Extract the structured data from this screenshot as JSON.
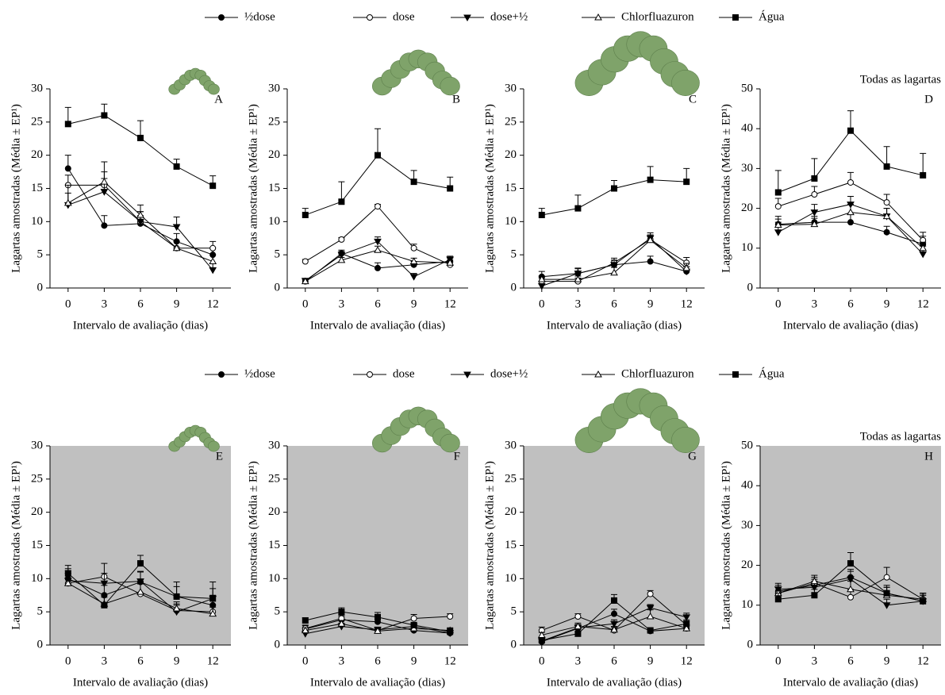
{
  "chart_data": [
    {
      "type": "line",
      "label": "A",
      "xlabel": "Intervalo de avaliação (dias)",
      "ylabel": "Lagartas amostradas (Média ± EP¹)",
      "x": [
        0,
        3,
        6,
        9,
        12
      ],
      "xlim": [
        -1.5,
        13.5
      ],
      "xticks": [
        0,
        3,
        6,
        9,
        12
      ],
      "ylim": [
        0,
        30
      ],
      "yticks": [
        0,
        5,
        10,
        15,
        20,
        25,
        30
      ],
      "background": "#ffffff",
      "series": [
        {
          "name": "½dose",
          "marker": "circle",
          "fill": "#000000",
          "color": "#000000",
          "values": [
            18,
            9.4,
            9.7,
            7,
            5
          ],
          "errors": [
            2,
            1.5,
            1.2,
            1.2,
            1
          ]
        },
        {
          "name": "dose",
          "marker": "circle",
          "fill": "#ffffff",
          "color": "#000000",
          "values": [
            15.5,
            15.5,
            10,
            6,
            6
          ],
          "errors": [
            1.5,
            2,
            1.5,
            1,
            1
          ]
        },
        {
          "name": "dose+½",
          "marker": "triangle-down",
          "fill": "#000000",
          "color": "#000000",
          "values": [
            12.5,
            14.5,
            10,
            9.2,
            2.7
          ],
          "errors": [
            3,
            2,
            1.5,
            1.5,
            1
          ]
        },
        {
          "name": "Chlorfluazuron",
          "marker": "triangle-up",
          "fill": "#ffffff",
          "color": "#000000",
          "values": [
            12.8,
            16,
            11,
            6,
            4
          ],
          "errors": [
            1.5,
            3,
            1.5,
            1,
            1
          ]
        },
        {
          "name": "Água",
          "marker": "square",
          "fill": "#000000",
          "color": "#000000",
          "values": [
            24.7,
            26,
            22.6,
            18.3,
            15.4
          ],
          "errors": [
            2.5,
            1.7,
            2.6,
            1.1,
            1.5
          ]
        }
      ]
    },
    {
      "type": "line",
      "label": "B",
      "xlabel": "Intervalo de avaliação (dias)",
      "ylabel": "Lagartas amostradas (Média ± EP¹)",
      "x": [
        0,
        3,
        6,
        9,
        12
      ],
      "xlim": [
        -1.5,
        13.5
      ],
      "xticks": [
        0,
        3,
        6,
        9,
        12
      ],
      "ylim": [
        0,
        30
      ],
      "yticks": [
        0,
        5,
        10,
        15,
        20,
        25,
        30
      ],
      "background": "#ffffff",
      "series": [
        {
          "name": "½dose",
          "marker": "circle",
          "fill": "#000000",
          "color": "#000000",
          "values": [
            1,
            5.2,
            3,
            3.5,
            4
          ],
          "errors": [
            0.3,
            0.5,
            0.8,
            0.5,
            0.5
          ]
        },
        {
          "name": "dose",
          "marker": "circle",
          "fill": "#ffffff",
          "color": "#000000",
          "values": [
            4,
            7.3,
            12.3,
            6,
            3.5
          ],
          "errors": [
            0.3,
            0.3,
            0.3,
            0.6,
            0.4
          ]
        },
        {
          "name": "dose+½",
          "marker": "triangle-down",
          "fill": "#000000",
          "color": "#000000",
          "values": [
            1.1,
            5,
            7,
            1.7,
            4.3
          ],
          "errors": [
            0.3,
            0.5,
            0.7,
            0.5,
            0.5
          ]
        },
        {
          "name": "Chlorfluazuron",
          "marker": "triangle-up",
          "fill": "#ffffff",
          "color": "#000000",
          "values": [
            1,
            4.2,
            5.7,
            4,
            3.8
          ],
          "errors": [
            0.3,
            0.4,
            0.6,
            0.5,
            0.4
          ]
        },
        {
          "name": "Água",
          "marker": "square",
          "fill": "#000000",
          "color": "#000000",
          "values": [
            11,
            13,
            20,
            16,
            15
          ],
          "errors": [
            1,
            3,
            4,
            1.7,
            1.7
          ]
        }
      ]
    },
    {
      "type": "line",
      "label": "C",
      "xlabel": "Intervalo de avaliação (dias)",
      "ylabel": "Lagartas amostradas (Média ± EP¹)",
      "x": [
        0,
        3,
        6,
        9,
        12
      ],
      "xlim": [
        -1.5,
        13.5
      ],
      "xticks": [
        0,
        3,
        6,
        9,
        12
      ],
      "ylim": [
        0,
        30
      ],
      "yticks": [
        0,
        5,
        10,
        15,
        20,
        25,
        30
      ],
      "background": "#ffffff",
      "series": [
        {
          "name": "½dose",
          "marker": "circle",
          "fill": "#000000",
          "color": "#000000",
          "values": [
            1.7,
            2.2,
            3.5,
            4,
            2.5
          ],
          "errors": [
            0.8,
            0.8,
            0.7,
            0.8,
            0.7
          ]
        },
        {
          "name": "dose",
          "marker": "circle",
          "fill": "#ffffff",
          "color": "#000000",
          "values": [
            1,
            1,
            3.8,
            7.3,
            3.8
          ],
          "errors": [
            0.5,
            0.5,
            0.7,
            0.7,
            0.8
          ]
        },
        {
          "name": "dose+½",
          "marker": "triangle-down",
          "fill": "#000000",
          "color": "#000000",
          "values": [
            0.3,
            2.2,
            3.5,
            7.5,
            2.5
          ],
          "errors": [
            0.3,
            0.7,
            0.7,
            0.8,
            0.7
          ]
        },
        {
          "name": "Chlorfluazuron",
          "marker": "triangle-up",
          "fill": "#ffffff",
          "color": "#000000",
          "values": [
            1.3,
            1.3,
            2.3,
            7.2,
            3
          ],
          "errors": [
            0.5,
            0.5,
            0.8,
            0.8,
            0.7
          ]
        },
        {
          "name": "Água",
          "marker": "square",
          "fill": "#000000",
          "color": "#000000",
          "values": [
            11,
            12,
            15,
            16.3,
            16
          ],
          "errors": [
            1,
            2,
            1.2,
            2,
            2
          ]
        }
      ]
    },
    {
      "type": "line",
      "label": "D",
      "annotation": "Todas as lagartas",
      "xlabel": "Intervalo de avaliação (dias)",
      "ylabel": "Lagartas amostradas (Média ± EP¹)",
      "x": [
        0,
        3,
        6,
        9,
        12
      ],
      "xlim": [
        -1.5,
        13.5
      ],
      "xticks": [
        0,
        3,
        6,
        9,
        12
      ],
      "ylim": [
        0,
        50
      ],
      "yticks": [
        0,
        10,
        20,
        30,
        40,
        50
      ],
      "background": "#ffffff",
      "series": [
        {
          "name": "½dose",
          "marker": "circle",
          "fill": "#000000",
          "color": "#000000",
          "values": [
            16,
            16.5,
            16.5,
            14,
            11
          ],
          "errors": [
            2,
            1.5,
            2,
            1.5,
            2
          ]
        },
        {
          "name": "dose",
          "marker": "circle",
          "fill": "#ffffff",
          "color": "#000000",
          "values": [
            20.5,
            23.5,
            26.5,
            21.5,
            12
          ],
          "errors": [
            2,
            2,
            2.5,
            2,
            2
          ]
        },
        {
          "name": "dose+½",
          "marker": "triangle-down",
          "fill": "#000000",
          "color": "#000000",
          "values": [
            14,
            19,
            21,
            18,
            8.5
          ],
          "errors": [
            2.5,
            2,
            2,
            2,
            2
          ]
        },
        {
          "name": "Chlorfluazuron",
          "marker": "triangle-up",
          "fill": "#ffffff",
          "color": "#000000",
          "values": [
            15.8,
            16,
            19,
            18,
            10
          ],
          "errors": [
            1.5,
            1.5,
            2,
            2,
            1.5
          ]
        },
        {
          "name": "Água",
          "marker": "square",
          "fill": "#000000",
          "color": "#000000",
          "values": [
            24,
            27.5,
            39.5,
            30.5,
            28.3
          ],
          "errors": [
            5.5,
            5,
            5,
            5,
            5.5
          ]
        }
      ]
    },
    {
      "type": "line",
      "label": "E",
      "xlabel": "Intervalo de avaliação (dias)",
      "ylabel": "Lagartas amostradas (Média ± EP¹)",
      "x": [
        0,
        3,
        6,
        9,
        12
      ],
      "xlim": [
        -1.5,
        13.5
      ],
      "xticks": [
        0,
        3,
        6,
        9,
        12
      ],
      "ylim": [
        0,
        30
      ],
      "yticks": [
        0,
        5,
        10,
        15,
        20,
        25,
        30
      ],
      "background": "#c0c0c0",
      "series": [
        {
          "name": "½dose",
          "marker": "circle",
          "fill": "#000000",
          "color": "#000000",
          "values": [
            10,
            7.5,
            9.5,
            7.3,
            6
          ],
          "errors": [
            1.5,
            1.5,
            1.5,
            1.5,
            1.5
          ]
        },
        {
          "name": "dose",
          "marker": "circle",
          "fill": "#ffffff",
          "color": "#000000",
          "values": [
            9.3,
            10.3,
            7.7,
            5.2,
            5
          ],
          "errors": [
            1.5,
            2,
            1.5,
            1,
            1
          ]
        },
        {
          "name": "dose+½",
          "marker": "triangle-down",
          "fill": "#000000",
          "color": "#000000",
          "values": [
            9.7,
            9.3,
            9.6,
            5,
            7
          ],
          "errors": [
            1.5,
            1.5,
            1.5,
            1,
            1.5
          ]
        },
        {
          "name": "Chlorfluazuron",
          "marker": "triangle-up",
          "fill": "#ffffff",
          "color": "#000000",
          "values": [
            9.3,
            6.2,
            8,
            5.5,
            4.7
          ],
          "errors": [
            1.5,
            1,
            1.5,
            1,
            1
          ]
        },
        {
          "name": "Água",
          "marker": "square",
          "fill": "#000000",
          "color": "#000000",
          "values": [
            10.8,
            6,
            12.3,
            7.3,
            7
          ],
          "errors": [
            1.2,
            1.5,
            1.2,
            2.2,
            2.5
          ]
        }
      ]
    },
    {
      "type": "line",
      "label": "F",
      "xlabel": "Intervalo de avaliação (dias)",
      "ylabel": "Lagartas amostradas (Média ± EP¹)",
      "x": [
        0,
        3,
        6,
        9,
        12
      ],
      "xlim": [
        -1.5,
        13.5
      ],
      "xticks": [
        0,
        3,
        6,
        9,
        12
      ],
      "ylim": [
        0,
        30
      ],
      "yticks": [
        0,
        5,
        10,
        15,
        20,
        25,
        30
      ],
      "background": "#c0c0c0",
      "series": [
        {
          "name": "½dose",
          "marker": "circle",
          "fill": "#000000",
          "color": "#000000",
          "values": [
            2.4,
            3.8,
            3.5,
            2.2,
            1.8
          ],
          "errors": [
            0.5,
            0.5,
            0.5,
            0.4,
            0.4
          ]
        },
        {
          "name": "dose",
          "marker": "circle",
          "fill": "#ffffff",
          "color": "#000000",
          "values": [
            2.5,
            4,
            2.2,
            4,
            4.3
          ],
          "errors": [
            0.5,
            0.5,
            0.4,
            0.6,
            0.4
          ]
        },
        {
          "name": "dose+½",
          "marker": "triangle-down",
          "fill": "#000000",
          "color": "#000000",
          "values": [
            1.7,
            2.8,
            2.3,
            2.8,
            1.8
          ],
          "errors": [
            0.4,
            0.5,
            0.4,
            0.4,
            0.4
          ]
        },
        {
          "name": "Chlorfluazuron",
          "marker": "triangle-up",
          "fill": "#ffffff",
          "color": "#000000",
          "values": [
            2.2,
            3.2,
            2.1,
            2.5,
            2.2
          ],
          "errors": [
            0.4,
            0.5,
            0.4,
            0.4,
            0.4
          ]
        },
        {
          "name": "Água",
          "marker": "square",
          "fill": "#000000",
          "color": "#000000",
          "values": [
            3.7,
            5,
            4.2,
            3,
            2
          ],
          "errors": [
            0.4,
            0.6,
            0.7,
            0.4,
            0.5
          ]
        }
      ]
    },
    {
      "type": "line",
      "label": "G",
      "xlabel": "Intervalo de avaliação (dias)",
      "ylabel": "Lagartas amostradas (Média ± EP¹)",
      "x": [
        0,
        3,
        6,
        9,
        12
      ],
      "xlim": [
        -1.5,
        13.5
      ],
      "xticks": [
        0,
        3,
        6,
        9,
        12
      ],
      "ylim": [
        0,
        30
      ],
      "yticks": [
        0,
        5,
        10,
        15,
        20,
        25,
        30
      ],
      "background": "#c0c0c0",
      "series": [
        {
          "name": "½dose",
          "marker": "circle",
          "fill": "#000000",
          "color": "#000000",
          "values": [
            0.5,
            2.5,
            4.7,
            2.1,
            2.5
          ],
          "errors": [
            0.3,
            0.5,
            0.7,
            0.4,
            0.5
          ]
        },
        {
          "name": "dose",
          "marker": "circle",
          "fill": "#ffffff",
          "color": "#000000",
          "values": [
            2.2,
            4.3,
            2.2,
            7.7,
            3
          ],
          "errors": [
            0.5,
            0.4,
            0.5,
            0.5,
            0.6
          ]
        },
        {
          "name": "dose+½",
          "marker": "triangle-down",
          "fill": "#000000",
          "color": "#000000",
          "values": [
            0.6,
            2.6,
            3.2,
            5.6,
            4.2
          ],
          "errors": [
            0.3,
            0.5,
            0.6,
            0.5,
            0.6
          ]
        },
        {
          "name": "Chlorfluazuron",
          "marker": "triangle-up",
          "fill": "#ffffff",
          "color": "#000000",
          "values": [
            1.5,
            2.8,
            2.3,
            4.3,
            2.5
          ],
          "errors": [
            0.4,
            0.5,
            0.5,
            1,
            0.5
          ]
        },
        {
          "name": "Água",
          "marker": "square",
          "fill": "#000000",
          "color": "#000000",
          "values": [
            0.7,
            1.7,
            6.7,
            2.2,
            3.2
          ],
          "errors": [
            0.3,
            0.3,
            0.9,
            0.4,
            0.6
          ]
        }
      ]
    },
    {
      "type": "line",
      "label": "H",
      "annotation": "Todas as lagartas",
      "xlabel": "Intervalo de avaliação (dias)",
      "ylabel": "Lagartas amostradas (Média ± EP¹)",
      "x": [
        0,
        3,
        6,
        9,
        12
      ],
      "xlim": [
        -1.5,
        13.5
      ],
      "xticks": [
        0,
        3,
        6,
        9,
        12
      ],
      "ylim": [
        0,
        50
      ],
      "yticks": [
        0,
        10,
        20,
        30,
        40,
        50
      ],
      "background": "#c0c0c0",
      "series": [
        {
          "name": "½dose",
          "marker": "circle",
          "fill": "#000000",
          "color": "#000000",
          "values": [
            13.5,
            15,
            17,
            13,
            11
          ],
          "errors": [
            1.5,
            1.5,
            2,
            1.5,
            1.5
          ]
        },
        {
          "name": "dose",
          "marker": "circle",
          "fill": "#ffffff",
          "color": "#000000",
          "values": [
            13,
            15.5,
            12,
            17,
            11.5
          ],
          "errors": [
            1.5,
            1.5,
            2,
            2.5,
            1.5
          ]
        },
        {
          "name": "dose+½",
          "marker": "triangle-down",
          "fill": "#000000",
          "color": "#000000",
          "values": [
            14,
            14.5,
            16.5,
            10,
            11
          ],
          "errors": [
            1.5,
            1.5,
            2,
            1.5,
            1.5
          ]
        },
        {
          "name": "Chlorfluazuron",
          "marker": "triangle-up",
          "fill": "#ffffff",
          "color": "#000000",
          "values": [
            13,
            16,
            14,
            12.5,
            11.5
          ],
          "errors": [
            1.5,
            1.5,
            2,
            2,
            1.5
          ]
        },
        {
          "name": "Água",
          "marker": "square",
          "fill": "#000000",
          "color": "#000000",
          "values": [
            11.5,
            12.5,
            20.5,
            13,
            11
          ],
          "errors": [
            1.5,
            1.5,
            2.7,
            2,
            2
          ]
        }
      ]
    }
  ]
}
